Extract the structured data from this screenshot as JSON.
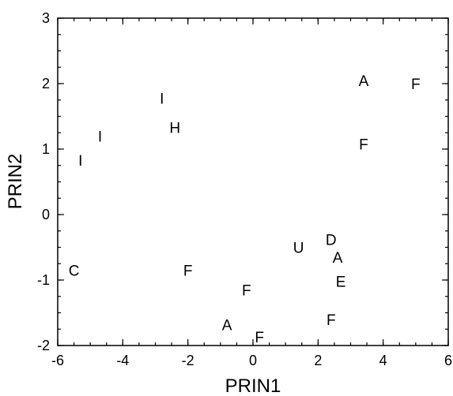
{
  "chart_data": {
    "type": "scatter",
    "title": "",
    "xlabel": "PRIN1",
    "ylabel": "PRIN2",
    "xlim": [
      -6,
      6
    ],
    "ylim": [
      -2,
      3
    ],
    "x_ticks": [
      -6,
      -4,
      -2,
      0,
      2,
      4,
      6
    ],
    "y_ticks": [
      -2,
      -1,
      0,
      1,
      2,
      3
    ],
    "minor_x_step": 0.5,
    "minor_y_step": 0.25,
    "grid": false,
    "legend": "none",
    "marker": "text-label",
    "color": "#000000",
    "points": [
      {
        "x": 3.4,
        "y": 2.05,
        "label": "A"
      },
      {
        "x": 5.0,
        "y": 2.0,
        "label": "F"
      },
      {
        "x": -2.8,
        "y": 1.78,
        "label": "I"
      },
      {
        "x": -2.4,
        "y": 1.33,
        "label": "H"
      },
      {
        "x": -4.7,
        "y": 1.2,
        "label": "I"
      },
      {
        "x": 3.4,
        "y": 1.08,
        "label": "F"
      },
      {
        "x": -5.3,
        "y": 0.83,
        "label": "I"
      },
      {
        "x": 2.4,
        "y": -0.38,
        "label": "D"
      },
      {
        "x": 1.4,
        "y": -0.5,
        "label": "U"
      },
      {
        "x": 2.6,
        "y": -0.65,
        "label": "A"
      },
      {
        "x": -5.5,
        "y": -0.85,
        "label": "C"
      },
      {
        "x": -2.0,
        "y": -0.85,
        "label": "F"
      },
      {
        "x": 2.7,
        "y": -1.02,
        "label": "E"
      },
      {
        "x": -0.2,
        "y": -1.15,
        "label": "F"
      },
      {
        "x": 2.4,
        "y": -1.6,
        "label": "F"
      },
      {
        "x": -0.8,
        "y": -1.68,
        "label": "A"
      },
      {
        "x": 0.2,
        "y": -1.87,
        "label": "F"
      }
    ]
  }
}
